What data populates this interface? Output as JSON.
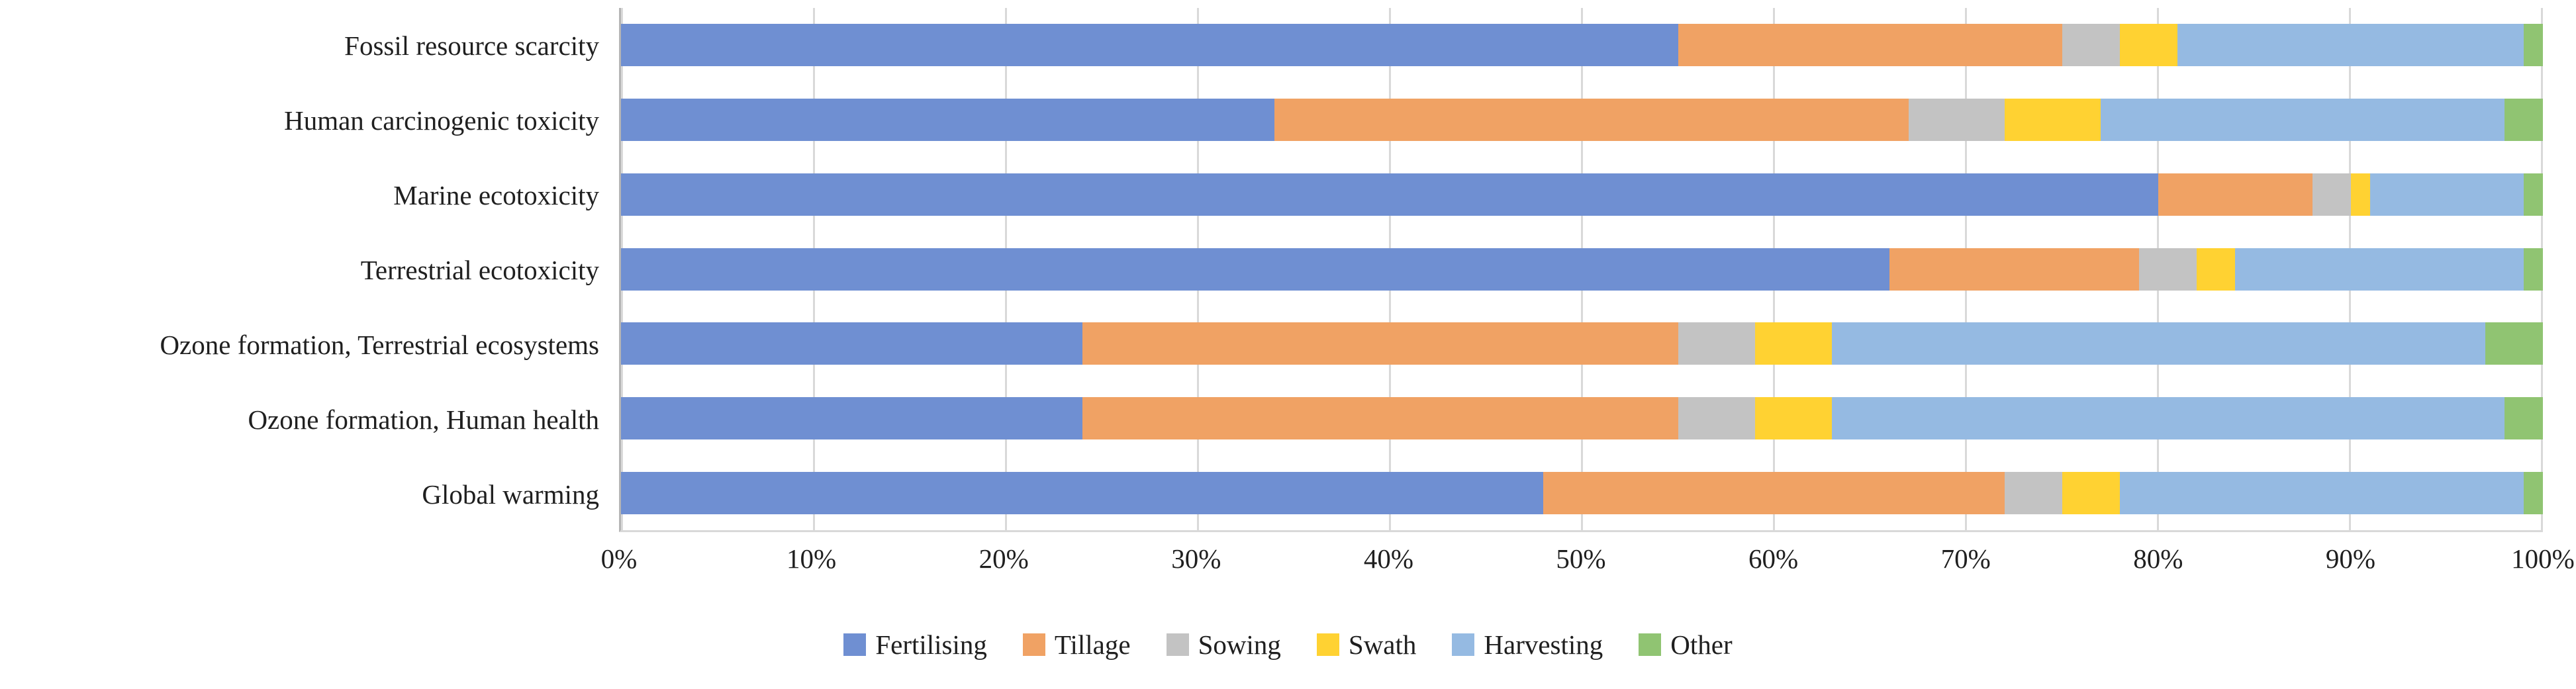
{
  "colors": {
    "fertilising": "#6F8FD2",
    "tillage": "#F0A264",
    "sowing": "#C3C3C3",
    "swath": "#FFD232",
    "harvesting": "#95BAE2",
    "other": "#90C472",
    "gridline": "#D9D9D9",
    "axis_line": "#B5B5B5",
    "text": "#1F1F1F",
    "background": "#FFFFFF"
  },
  "chart_data": {
    "type": "bar",
    "orientation": "horizontal",
    "stacked": true,
    "stack_mode": "percent",
    "title": "",
    "xlabel": "",
    "ylabel": "",
    "xlim": [
      0,
      100
    ],
    "grid": "vertical",
    "legend_position": "bottom",
    "categories": [
      "Fossil resource scarcity",
      "Human carcinogenic toxicity",
      "Marine ecotoxicity",
      "Terrestrial ecotoxicity",
      "Ozone formation, Terrestrial ecosystems",
      "Ozone formation, Human health",
      "Global warming"
    ],
    "x_ticks": [
      "0%",
      "10%",
      "20%",
      "30%",
      "40%",
      "50%",
      "60%",
      "70%",
      "80%",
      "90%",
      "100%"
    ],
    "series": [
      {
        "name": "Fertilising",
        "color": "#6F8FD2",
        "values": [
          55,
          34,
          80,
          66,
          24,
          24,
          48
        ]
      },
      {
        "name": "Tillage",
        "color": "#F0A264",
        "values": [
          20,
          33,
          8,
          13,
          31,
          31,
          24
        ]
      },
      {
        "name": "Sowing",
        "color": "#C3C3C3",
        "values": [
          3,
          5,
          2,
          3,
          4,
          4,
          3
        ]
      },
      {
        "name": "Swath",
        "color": "#FFD232",
        "values": [
          3,
          5,
          1,
          2,
          4,
          4,
          3
        ]
      },
      {
        "name": "Harvesting",
        "color": "#95BAE2",
        "values": [
          18,
          21,
          8,
          15,
          34,
          35,
          21
        ]
      },
      {
        "name": "Other",
        "color": "#90C472",
        "values": [
          1,
          2,
          1,
          1,
          3,
          2,
          1
        ]
      }
    ]
  }
}
